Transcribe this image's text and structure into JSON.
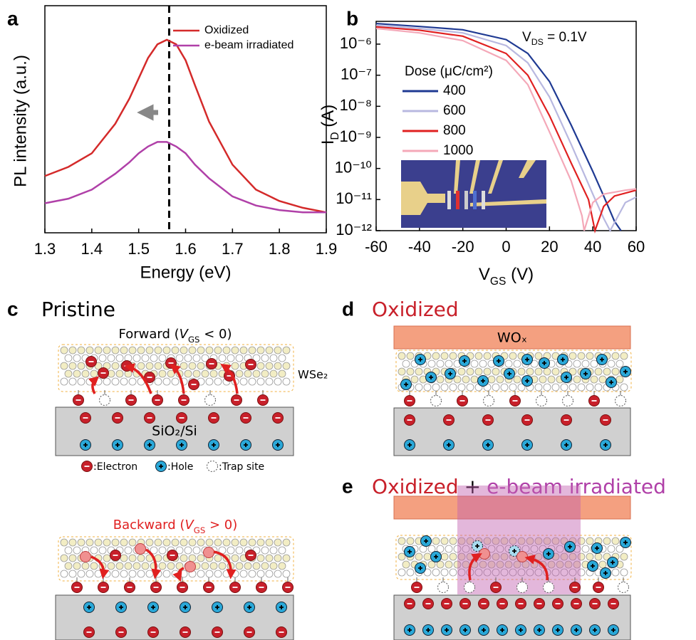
{
  "chart_data": [
    {
      "type": "line",
      "panel": "a",
      "xlabel": "Energy (eV)",
      "ylabel": "PL intensity (a.u.)",
      "x": [
        1.3,
        1.35,
        1.4,
        1.45,
        1.48,
        1.5,
        1.52,
        1.54,
        1.56,
        1.58,
        1.6,
        1.62,
        1.65,
        1.7,
        1.75,
        1.8,
        1.85,
        1.9
      ],
      "series": [
        {
          "name": "Oxidized",
          "color": "#d42a2a",
          "values": [
            0.25,
            0.29,
            0.35,
            0.48,
            0.59,
            0.68,
            0.77,
            0.83,
            0.85,
            0.83,
            0.76,
            0.65,
            0.49,
            0.3,
            0.19,
            0.14,
            0.11,
            0.09
          ]
        },
        {
          "name": "e-beam irradiated",
          "color": "#b040a8",
          "values": [
            0.13,
            0.15,
            0.19,
            0.26,
            0.31,
            0.35,
            0.38,
            0.4,
            0.4,
            0.38,
            0.35,
            0.3,
            0.24,
            0.16,
            0.12,
            0.1,
            0.09,
            0.09
          ]
        }
      ],
      "xlim": [
        1.3,
        1.9
      ],
      "xticks": [
        1.3,
        1.4,
        1.5,
        1.6,
        1.7,
        1.8,
        1.9
      ],
      "ylim": [
        0,
        1
      ],
      "vline": 1.565
    },
    {
      "type": "line",
      "panel": "b",
      "log_y": true,
      "xlabel": [
        "V",
        "GS",
        " (V)"
      ],
      "ylabel": [
        "I",
        "D",
        " (A)"
      ],
      "annotation": [
        "V",
        "DS",
        " = 0.1V"
      ],
      "legend_title": "Dose (μC/cm²)",
      "series": [
        {
          "name": "400",
          "color": "#1f3a93",
          "x": [
            -60,
            -40,
            -20,
            0,
            10,
            20,
            30,
            40,
            45,
            50,
            53
          ],
          "values": [
            4.6e-06,
            3.7e-06,
            2.9e-06,
            1.4e-06,
            5e-07,
            6.3e-08,
            2.5e-09,
            8e-11,
            1.3e-11,
            2e-12,
            1e-12
          ]
        },
        {
          "name": "600",
          "color": "#b8b8e0",
          "x": [
            -60,
            -40,
            -20,
            0,
            10,
            20,
            30,
            40,
            45,
            48,
            55,
            60
          ],
          "values": [
            4e-06,
            3.2e-06,
            2.3e-06,
            9e-07,
            2.5e-07,
            2e-08,
            6e-10,
            1.5e-11,
            2.5e-12,
            1e-12,
            8e-12,
            1.2e-11
          ]
        },
        {
          "name": "800",
          "color": "#e02020",
          "x": [
            -60,
            -40,
            -20,
            0,
            10,
            20,
            30,
            38,
            41,
            45,
            50,
            60
          ],
          "values": [
            3.6e-06,
            2.8e-06,
            1.8e-06,
            5e-07,
            1e-07,
            5e-09,
            1.5e-10,
            1e-11,
            1e-12,
            6e-12,
            1.3e-11,
            2e-11
          ]
        },
        {
          "name": "1000",
          "color": "#f4a8b8",
          "x": [
            -60,
            -40,
            -20,
            0,
            10,
            20,
            30,
            35,
            36,
            40,
            45,
            55,
            60
          ],
          "values": [
            3.2e-06,
            2.3e-06,
            1.3e-06,
            3e-07,
            5e-08,
            1.5e-09,
            4e-11,
            3e-12,
            1e-12,
            8e-12,
            1.5e-11,
            2e-11,
            2.2e-11
          ]
        }
      ],
      "xlim": [
        -60,
        60
      ],
      "xticks": [
        -60,
        -40,
        -20,
        0,
        20,
        40,
        60
      ],
      "ylim": [
        1e-12,
        5.4e-06
      ],
      "yticks": [
        {
          "value": 1e-12,
          "label": "10⁻¹²"
        },
        {
          "value": 1e-11,
          "label": "10⁻¹¹"
        },
        {
          "value": 1e-10,
          "label": "10⁻¹⁰"
        },
        {
          "value": 1e-09,
          "label": "10⁻⁹"
        },
        {
          "value": 1e-08,
          "label": "10⁻⁸"
        },
        {
          "value": 1e-07,
          "label": "10⁻⁷"
        },
        {
          "value": 1e-06,
          "label": "10⁻⁶"
        }
      ]
    }
  ],
  "diagrams": {
    "c": {
      "label": "c",
      "title": "Pristine",
      "forward": [
        "Forward (",
        "V",
        "GS",
        " < 0)"
      ],
      "backward": [
        "Backward (",
        "V",
        "GS",
        " > 0)"
      ],
      "layer": "WSe₂",
      "substrate": "SiO₂/Si",
      "legend": [
        ":Electron",
        ":Hole",
        ":Trap site"
      ]
    },
    "d": {
      "label": "d",
      "title": "Oxidized",
      "oxide": "WOₓ"
    },
    "e": {
      "label": "e",
      "title": [
        "Oxidized",
        "+",
        "e-beam irradiated"
      ]
    }
  }
}
